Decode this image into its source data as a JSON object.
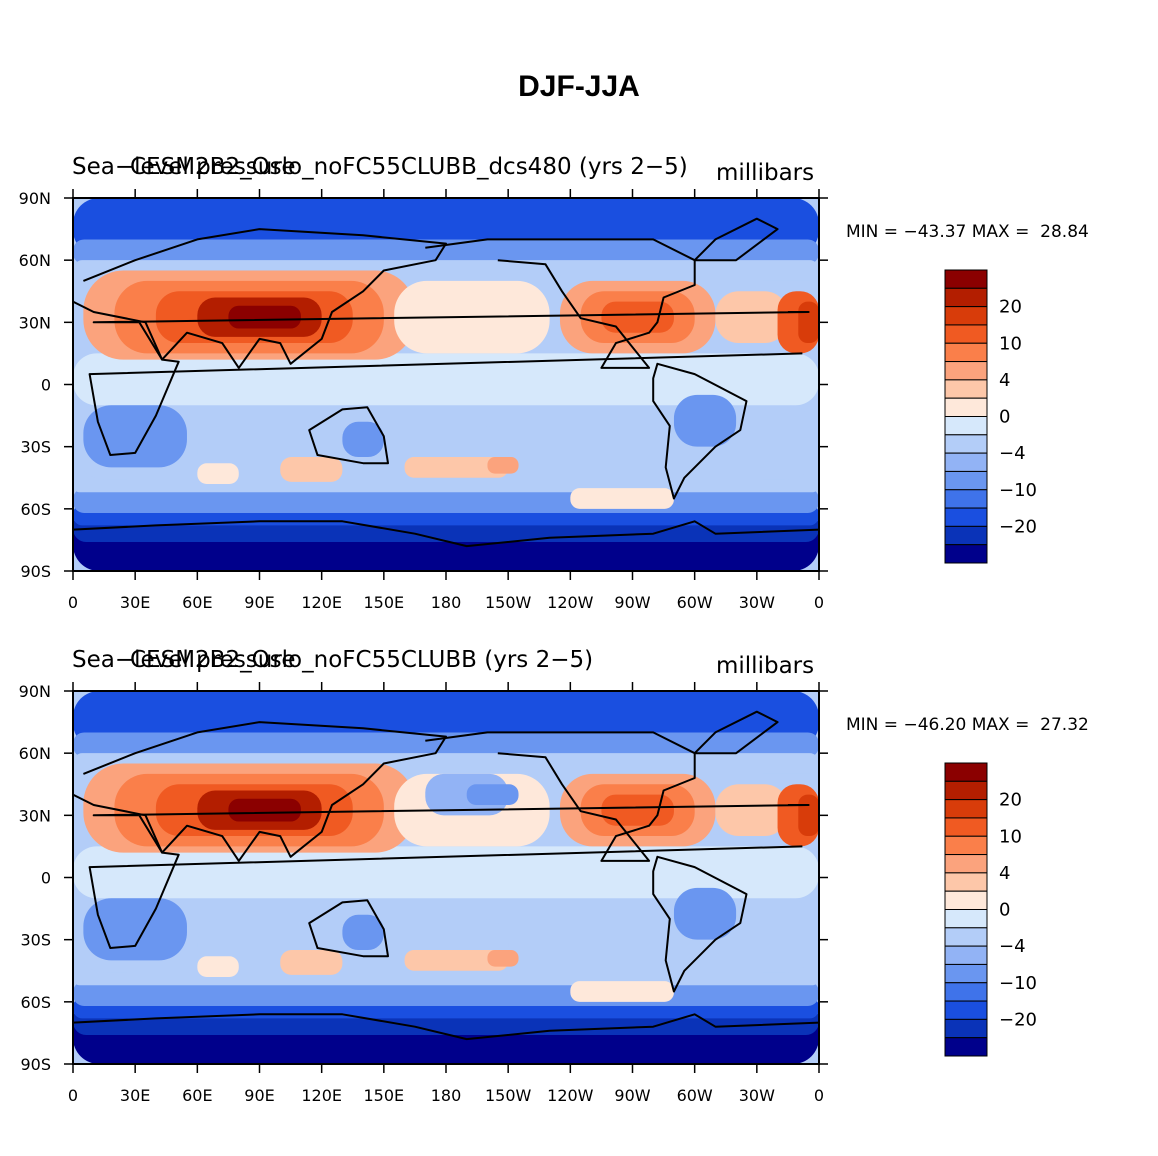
{
  "title": "DJF-JJA",
  "chart_data": [
    {
      "type": "heatmap",
      "variable": "Sea-level pressure",
      "case": "CESM2B2_Oslo_noFC55CLUBB_dcs480 (yrs 2-5)",
      "left_title": "Sea−level pressure",
      "center_title": "CESM2B2_Oslo_noFC55CLUBB_dcs480 (yrs 2−5)",
      "units": "millibars",
      "min": "−43.37",
      "max": "28.84",
      "minmax_text": "MIN = −43.37 MAX =  28.84",
      "xlabels": [
        "0",
        "30E",
        "60E",
        "90E",
        "120E",
        "150E",
        "180",
        "150W",
        "120W",
        "90W",
        "60W",
        "30W",
        "0"
      ],
      "ylabels": [
        "90N",
        "60N",
        "30N",
        "0",
        "30S",
        "60S",
        "90S"
      ],
      "xlim": [
        0,
        360
      ],
      "ylim": [
        -90,
        90
      ],
      "colorbar_labels": [
        "20",
        "10",
        "4",
        "0",
        "−4",
        "−10",
        "−20"
      ]
    },
    {
      "type": "heatmap",
      "variable": "Sea-level pressure",
      "case": "CESM2B2_Oslo_noFC55CLUBB (yrs 2-5)",
      "left_title": "Sea−level pressure",
      "center_title": "CESM2B2_Oslo_noFC55CLUBB (yrs 2−5)",
      "units": "millibars",
      "min": "−46.20",
      "max": "27.32",
      "minmax_text": "MIN = −46.20 MAX =  27.32",
      "xlabels": [
        "0",
        "30E",
        "60E",
        "90E",
        "120E",
        "150E",
        "180",
        "150W",
        "120W",
        "90W",
        "60W",
        "30W",
        "0"
      ],
      "ylabels": [
        "90N",
        "60N",
        "30N",
        "0",
        "30S",
        "60S",
        "90S"
      ],
      "xlim": [
        0,
        360
      ],
      "ylim": [
        -90,
        90
      ],
      "colorbar_labels": [
        "20",
        "10",
        "4",
        "0",
        "−4",
        "−10",
        "−20"
      ]
    }
  ],
  "colorbar_colors": [
    "#8b0000",
    "#b31e00",
    "#d83c0a",
    "#f05a22",
    "#fa7f4a",
    "#fba37d",
    "#fdc7a9",
    "#fee8da",
    "#d6e8fb",
    "#b3cdf8",
    "#92b3f5",
    "#6a96f0",
    "#3f73ea",
    "#1a4fe0",
    "#0a33b8",
    "#00008b"
  ]
}
